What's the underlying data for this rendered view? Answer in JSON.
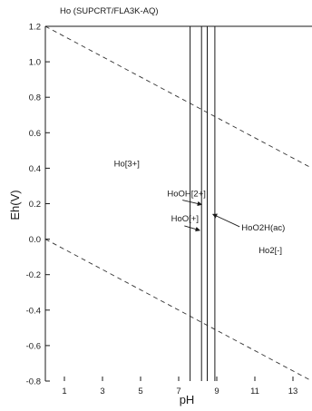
{
  "chart_data": {
    "type": "line",
    "title": "Ho (SUPCRT/FLA3K-AQ)",
    "xlabel": "pH",
    "ylabel": "Eh(V)",
    "xlim": [
      0,
      14
    ],
    "ylim": [
      -0.8,
      1.2
    ],
    "x_ticks": [
      1,
      3,
      5,
      7,
      9,
      11,
      13
    ],
    "x_tick_labels": [
      "1",
      "3",
      "5",
      "7",
      "9",
      "11",
      "13"
    ],
    "y_ticks": [
      1.2,
      1.0,
      0.8,
      0.6,
      0.4,
      0.2,
      0.0,
      -0.2,
      -0.4,
      -0.6,
      -0.8
    ],
    "y_tick_labels": [
      "1.2",
      "1.0",
      "0.8",
      "0.6",
      "0.4",
      "0.2",
      "0.0",
      "-0.2",
      "-0.4",
      "-0.6",
      "-0.8"
    ],
    "grid": false,
    "boundaries": [
      7.6,
      8.2,
      8.5,
      8.9
    ],
    "water_lines": [
      {
        "x": [
          0,
          14
        ],
        "y": [
          1.23,
          0.4
        ]
      },
      {
        "x": [
          0,
          14
        ],
        "y": [
          0.0,
          -0.83
        ]
      }
    ],
    "regions": [
      {
        "label": "Ho[3+]",
        "x": 3.6,
        "y": 0.41
      },
      {
        "label": "HoOH[2+]",
        "x": 6.4,
        "y": 0.24
      },
      {
        "label": "HoO[+]",
        "x": 6.6,
        "y": 0.1
      },
      {
        "label": "HoO2H(ac)",
        "x": 10.3,
        "y": 0.05
      },
      {
        "label": "Ho2[-]",
        "x": 11.2,
        "y": -0.08
      }
    ],
    "arrows": [
      {
        "from": [
          7.2,
          0.22
        ],
        "to": [
          8.2,
          0.195
        ]
      },
      {
        "from": [
          7.3,
          0.075
        ],
        "to": [
          8.1,
          0.05
        ]
      },
      {
        "from": [
          10.2,
          0.07
        ],
        "to": [
          8.8,
          0.14
        ]
      }
    ]
  }
}
